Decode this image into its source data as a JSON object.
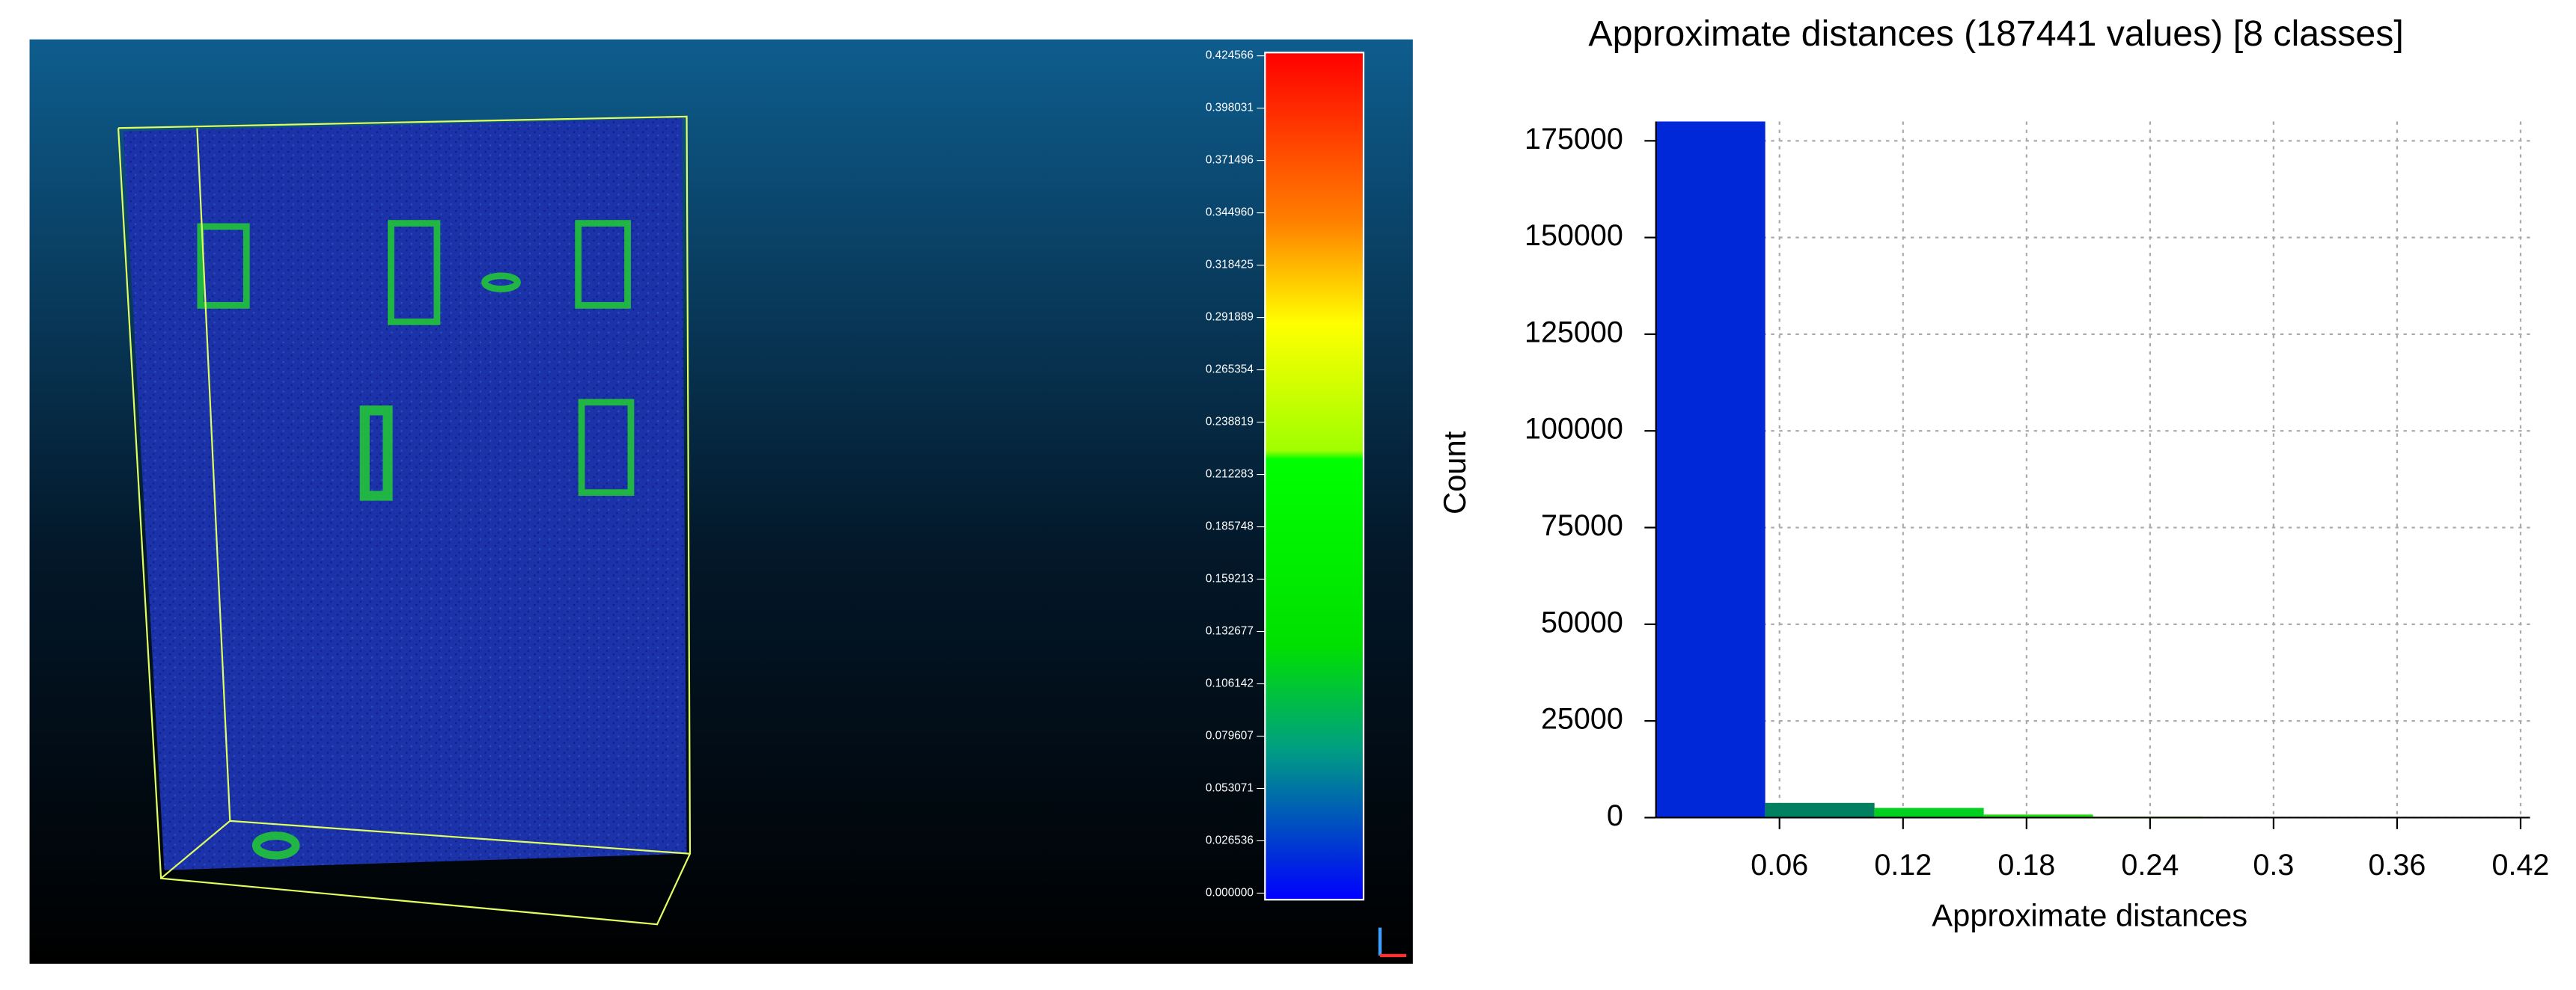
{
  "viewer": {
    "scale_labels": [
      "0.424566",
      "0.398031",
      "0.371496",
      "0.344960",
      "0.318425",
      "0.291889",
      "0.265354",
      "0.238819",
      "0.212283",
      "0.185748",
      "0.159213",
      "0.132677",
      "0.106142",
      "0.079607",
      "0.053071",
      "0.026536",
      "0.000000"
    ]
  },
  "chart_data": {
    "type": "histogram",
    "title": "Approximate distances (187441 values) [8 classes]",
    "x_label": "Approximate distances",
    "y_label": "Count",
    "bins": [
      0,
      0.053071,
      0.106142,
      0.159213,
      0.212283,
      0.265354,
      0.318425,
      0.371496,
      0.424566
    ],
    "values": [
      180000,
      3800,
      2500,
      800,
      250,
      60,
      20,
      11
    ],
    "colors": [
      "#0028d8",
      "#008060",
      "#00d020",
      "#20e010",
      "#80e000",
      "#c0e000",
      "#e0c000",
      "#ff4000"
    ],
    "xlim": [
      0,
      0.424566
    ],
    "ylim": [
      0,
      180000
    ],
    "xticks": [
      0.06,
      0.12,
      0.18,
      0.24,
      0.3,
      0.36,
      0.42
    ],
    "yticks": [
      0,
      25000,
      50000,
      75000,
      100000,
      125000,
      150000,
      175000
    ],
    "grid": true
  }
}
